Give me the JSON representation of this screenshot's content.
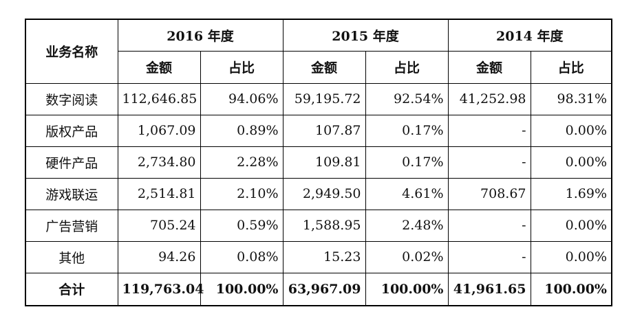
{
  "table": {
    "header": {
      "business_name": "业务名称",
      "years": [
        "2016 年度",
        "2015 年度",
        "2014 年度"
      ],
      "amount_label": "金额",
      "ratio_label": "占比"
    },
    "rows": [
      {
        "name": "数字阅读",
        "cells": [
          "112,646.85",
          "94.06%",
          "59,195.72",
          "92.54%",
          "41,252.98",
          "98.31%"
        ]
      },
      {
        "name": "版权产品",
        "cells": [
          "1,067.09",
          "0.89%",
          "107.87",
          "0.17%",
          "-",
          "0.00%"
        ]
      },
      {
        "name": "硬件产品",
        "cells": [
          "2,734.80",
          "2.28%",
          "109.81",
          "0.17%",
          "-",
          "0.00%"
        ]
      },
      {
        "name": "游戏联运",
        "cells": [
          "2,514.81",
          "2.10%",
          "2,949.50",
          "4.61%",
          "708.67",
          "1.69%"
        ]
      },
      {
        "name": "广告营销",
        "cells": [
          "705.24",
          "0.59%",
          "1,588.95",
          "2.48%",
          "-",
          "0.00%"
        ]
      },
      {
        "name": "其他",
        "cells": [
          "94.26",
          "0.08%",
          "15.23",
          "0.02%",
          "-",
          "0.00%"
        ]
      }
    ],
    "total": {
      "name": "合计",
      "cells": [
        "119,763.04",
        "100.00%",
        "63,967.09",
        "100.00%",
        "41,961.65",
        "100.00%"
      ]
    }
  }
}
